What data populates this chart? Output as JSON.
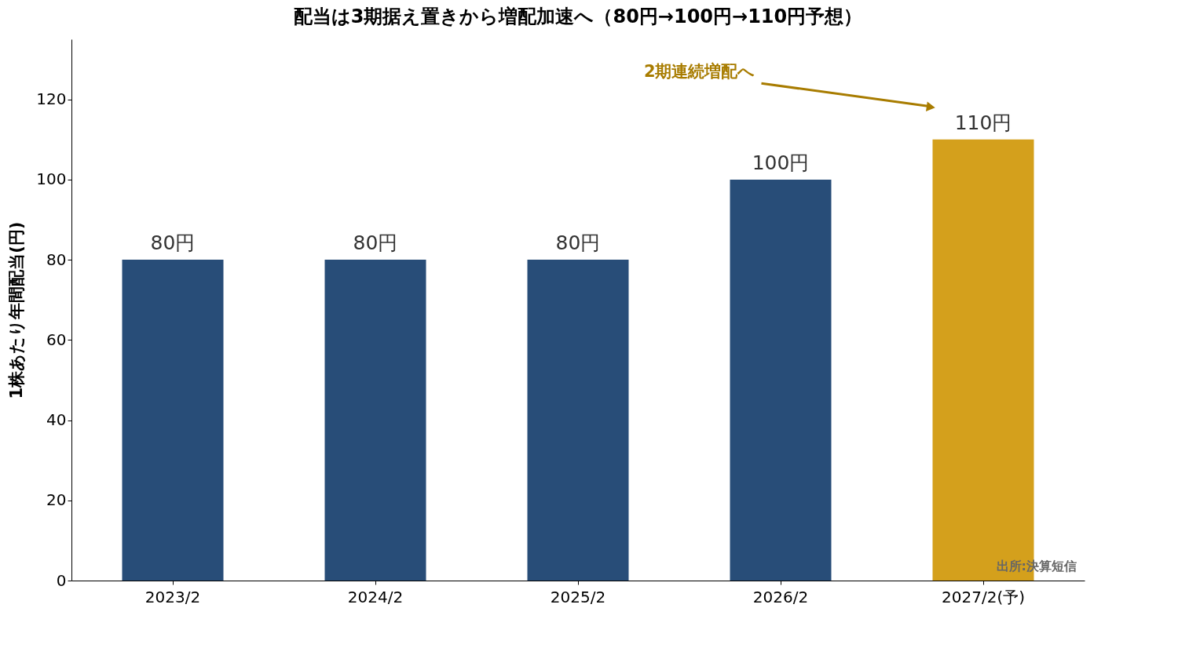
{
  "chart_data": {
    "type": "bar",
    "title": "配当は3期据え置きから増配加速へ（80円→100円→110円予想）",
    "ylabel": "1株あたり年間配当(円)",
    "categories": [
      "2023/2",
      "2024/2",
      "2025/2",
      "2026/2",
      "2027/2(予)"
    ],
    "values": [
      80,
      80,
      80,
      100,
      110
    ],
    "colors": [
      "#284d78",
      "#284d78",
      "#284d78",
      "#284d78",
      "#d4a01c"
    ],
    "value_labels": [
      "80円",
      "80円",
      "80円",
      "100円",
      "110円"
    ],
    "ylim": [
      0,
      135
    ],
    "yticks": [
      0,
      20,
      40,
      60,
      80,
      100,
      120
    ],
    "grid": false,
    "annotations": [
      "2期連続増配へ",
      "出所:決算短信"
    ]
  }
}
